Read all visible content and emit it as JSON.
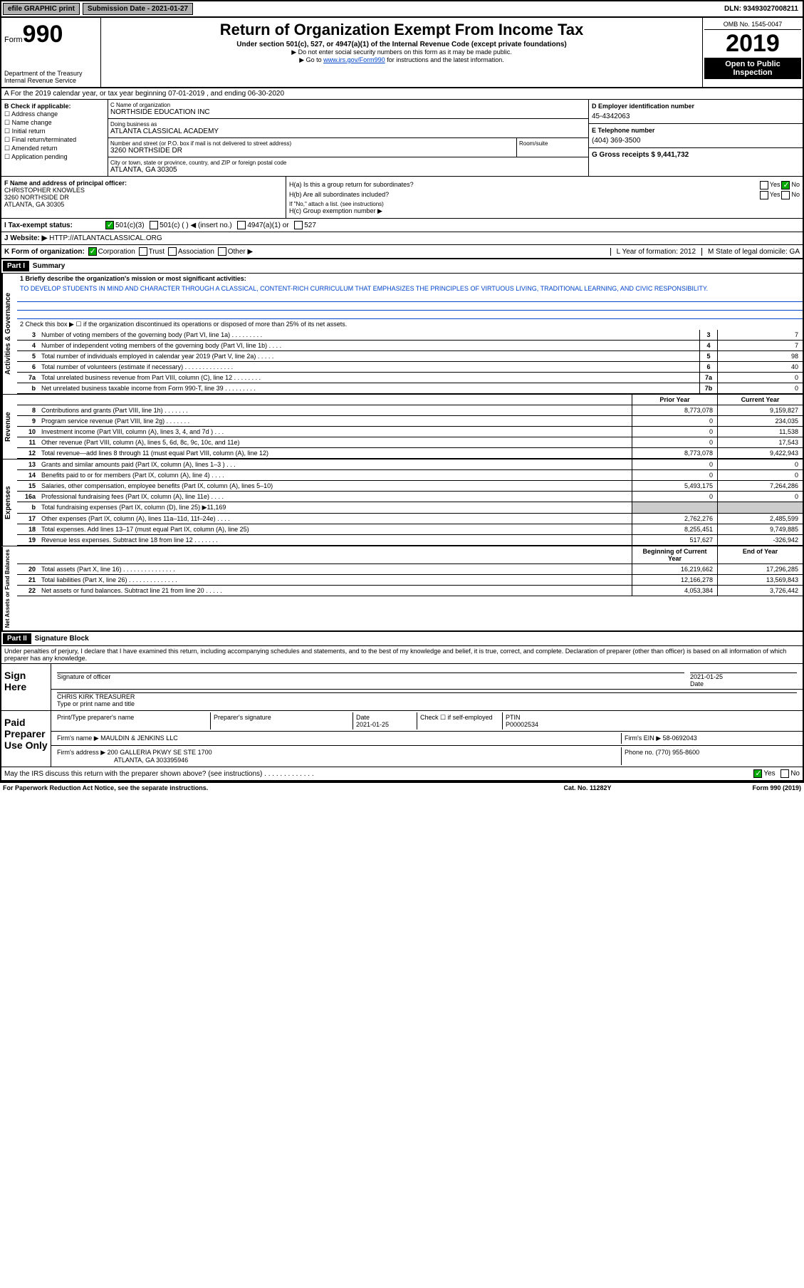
{
  "topbar": {
    "efile": "efile GRAPHIC print",
    "submission": "Submission Date - 2021-01-27",
    "dln": "DLN: 93493027008211"
  },
  "header": {
    "form_prefix": "Form",
    "form_num": "990",
    "dept": "Department of the Treasury\nInternal Revenue Service",
    "title": "Return of Organization Exempt From Income Tax",
    "subtitle": "Under section 501(c), 527, or 4947(a)(1) of the Internal Revenue Code (except private foundations)",
    "note1": "▶ Do not enter social security numbers on this form as it may be made public.",
    "note2_pre": "▶ Go to ",
    "note2_link": "www.irs.gov/Form990",
    "note2_post": " for instructions and the latest information.",
    "omb": "OMB No. 1545-0047",
    "year": "2019",
    "inspect": "Open to Public Inspection"
  },
  "row_a": "A For the 2019 calendar year, or tax year beginning 07-01-2019   , and ending 06-30-2020",
  "b": {
    "label": "B Check if applicable:",
    "opts": [
      "Address change",
      "Name change",
      "Initial return",
      "Final return/terminated",
      "Amended return",
      "Application pending"
    ]
  },
  "c": {
    "name_label": "C Name of organization",
    "name": "NORTHSIDE EDUCATION INC",
    "dba_label": "Doing business as",
    "dba": "ATLANTA CLASSICAL ACADEMY",
    "addr_label": "Number and street (or P.O. box if mail is not delivered to street address)",
    "addr": "3260 NORTHSIDE DR",
    "room_label": "Room/suite",
    "city_label": "City or town, state or province, country, and ZIP or foreign postal code",
    "city": "ATLANTA, GA  30305"
  },
  "d": {
    "label": "D Employer identification number",
    "val": "45-4342063"
  },
  "e": {
    "label": "E Telephone number",
    "val": "(404) 369-3500"
  },
  "g": {
    "label": "G Gross receipts $ 9,441,732"
  },
  "f": {
    "label": "F  Name and address of principal officer:",
    "name": "CHRISTOPHER KNOWLES",
    "addr1": "3260 NORTHSIDE DR",
    "addr2": "ATLANTA, GA  30305"
  },
  "h": {
    "a_label": "H(a)  Is this a group return for subordinates?",
    "b_label": "H(b)  Are all subordinates included?",
    "b_note": "If \"No,\" attach a list. (see instructions)",
    "c_label": "H(c)  Group exemption number ▶"
  },
  "i": {
    "label": "I   Tax-exempt status:",
    "opts": [
      "501(c)(3)",
      "501(c) (  ) ◀ (insert no.)",
      "4947(a)(1) or",
      "527"
    ]
  },
  "j": {
    "label": "J   Website: ▶",
    "val": "HTTP://ATLANTACLASSICAL.ORG"
  },
  "k": {
    "label": "K Form of organization:",
    "opts": [
      "Corporation",
      "Trust",
      "Association",
      "Other ▶"
    ]
  },
  "l": {
    "label": "L Year of formation: 2012"
  },
  "m": {
    "label": "M State of legal domicile: GA"
  },
  "part1": {
    "hdr": "Part I",
    "title": "Summary"
  },
  "mission": {
    "label": "1  Briefly describe the organization's mission or most significant activities:",
    "text": "TO DEVELOP STUDENTS IN MIND AND CHARACTER THROUGH A CLASSICAL, CONTENT-RICH CURRICULUM THAT EMPHASIZES THE PRINCIPLES OF VIRTUOUS LIVING, TRADITIONAL LEARNING, AND CIVIC RESPONSIBILITY."
  },
  "line2": "2   Check this box ▶ ☐  if the organization discontinued its operations or disposed of more than 25% of its net assets.",
  "gov_rows": [
    {
      "n": "3",
      "t": "Number of voting members of the governing body (Part VI, line 1a)  .  .  .  .  .  .  .  .  .",
      "b": "3",
      "v": "7"
    },
    {
      "n": "4",
      "t": "Number of independent voting members of the governing body (Part VI, line 1b)  .  .  .  .",
      "b": "4",
      "v": "7"
    },
    {
      "n": "5",
      "t": "Total number of individuals employed in calendar year 2019 (Part V, line 2a)  .  .  .  .  .",
      "b": "5",
      "v": "98"
    },
    {
      "n": "6",
      "t": "Total number of volunteers (estimate if necessary)   .  .  .  .  .  .  .  .  .  .  .  .  .  .",
      "b": "6",
      "v": "40"
    },
    {
      "n": "7a",
      "t": "Total unrelated business revenue from Part VIII, column (C), line 12  .  .  .  .  .  .  .  .",
      "b": "7a",
      "v": "0"
    },
    {
      "n": "b",
      "t": "Net unrelated business taxable income from Form 990-T, line 39  .  .  .  .  .  .  .  .  .",
      "b": "7b",
      "v": "0"
    }
  ],
  "col_hdrs": {
    "prior": "Prior Year",
    "current": "Current Year"
  },
  "rev_rows": [
    {
      "n": "8",
      "t": "Contributions and grants (Part VIII, line 1h)  .  .  .  .  .  .  .",
      "p": "8,773,078",
      "c": "9,159,827"
    },
    {
      "n": "9",
      "t": "Program service revenue (Part VIII, line 2g)  .  .  .  .  .  .  .",
      "p": "0",
      "c": "234,035"
    },
    {
      "n": "10",
      "t": "Investment income (Part VIII, column (A), lines 3, 4, and 7d )  .  .  .",
      "p": "0",
      "c": "11,538"
    },
    {
      "n": "11",
      "t": "Other revenue (Part VIII, column (A), lines 5, 6d, 8c, 9c, 10c, and 11e)",
      "p": "0",
      "c": "17,543"
    },
    {
      "n": "12",
      "t": "Total revenue—add lines 8 through 11 (must equal Part VIII, column (A), line 12)",
      "p": "8,773,078",
      "c": "9,422,943"
    }
  ],
  "exp_rows": [
    {
      "n": "13",
      "t": "Grants and similar amounts paid (Part IX, column (A), lines 1–3 )  .  .  .",
      "p": "0",
      "c": "0"
    },
    {
      "n": "14",
      "t": "Benefits paid to or for members (Part IX, column (A), line 4)  .  .  .  .",
      "p": "0",
      "c": "0"
    },
    {
      "n": "15",
      "t": "Salaries, other compensation, employee benefits (Part IX, column (A), lines 5–10)",
      "p": "5,493,175",
      "c": "7,264,286"
    },
    {
      "n": "16a",
      "t": "Professional fundraising fees (Part IX, column (A), line 11e)  .  .  .  .",
      "p": "0",
      "c": "0"
    },
    {
      "n": "b",
      "t": "Total fundraising expenses (Part IX, column (D), line 25) ▶11,169",
      "p": "",
      "c": "",
      "gray": true
    },
    {
      "n": "17",
      "t": "Other expenses (Part IX, column (A), lines 11a–11d, 11f–24e)  .  .  .  .",
      "p": "2,762,276",
      "c": "2,485,599"
    },
    {
      "n": "18",
      "t": "Total expenses. Add lines 13–17 (must equal Part IX, column (A), line 25)",
      "p": "8,255,451",
      "c": "9,749,885"
    },
    {
      "n": "19",
      "t": "Revenue less expenses. Subtract line 18 from line 12  .  .  .  .  .  .  .",
      "p": "517,627",
      "c": "-326,942"
    }
  ],
  "net_hdrs": {
    "beg": "Beginning of Current Year",
    "end": "End of Year"
  },
  "net_rows": [
    {
      "n": "20",
      "t": "Total assets (Part X, line 16)  .  .  .  .  .  .  .  .  .  .  .  .  .  .  .",
      "p": "16,219,662",
      "c": "17,296,285"
    },
    {
      "n": "21",
      "t": "Total liabilities (Part X, line 26)  .  .  .  .  .  .  .  .  .  .  .  .  .  .",
      "p": "12,166,278",
      "c": "13,569,843"
    },
    {
      "n": "22",
      "t": "Net assets or fund balances. Subtract line 21 from line 20  .  .  .  .  .",
      "p": "4,053,384",
      "c": "3,726,442"
    }
  ],
  "part2": {
    "hdr": "Part II",
    "title": "Signature Block"
  },
  "declaration": "Under penalties of perjury, I declare that I have examined this return, including accompanying schedules and statements, and to the best of my knowledge and belief, it is true, correct, and complete. Declaration of preparer (other than officer) is based on all information of which preparer has any knowledge.",
  "sign": {
    "here": "Sign Here",
    "sig_label": "Signature of officer",
    "date": "2021-01-25",
    "date_label": "Date",
    "name": "CHRIS KIRK  TREASURER",
    "name_label": "Type or print name and title"
  },
  "preparer": {
    "label": "Paid Preparer Use Only",
    "name_hdr": "Print/Type preparer's name",
    "sig_hdr": "Preparer's signature",
    "date_hdr": "Date",
    "date": "2021-01-25",
    "check_label": "Check ☐ if self-employed",
    "ptin_label": "PTIN",
    "ptin": "P00002534",
    "firm_label": "Firm's name    ▶",
    "firm": "MAULDIN & JENKINS LLC",
    "ein_label": "Firm's EIN ▶",
    "ein": "58-0692043",
    "addr_label": "Firm's address ▶",
    "addr": "200 GALLERIA PKWY SE STE 1700",
    "addr2": "ATLANTA, GA  303395946",
    "phone_label": "Phone no.",
    "phone": "(770) 955-8600"
  },
  "discuss": "May the IRS discuss this return with the preparer shown above? (see instructions)  .  .  .  .  .  .  .  .  .  .  .  .  .",
  "footer": {
    "left": "For Paperwork Reduction Act Notice, see the separate instructions.",
    "mid": "Cat. No. 11282Y",
    "right": "Form 990 (2019)"
  }
}
